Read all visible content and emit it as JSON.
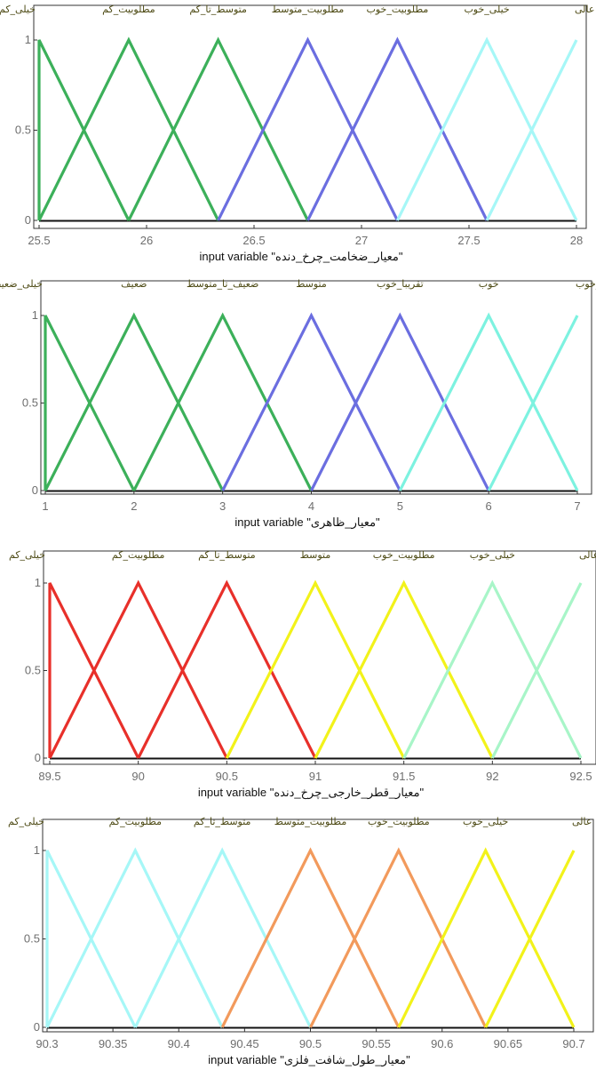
{
  "chart_data": [
    {
      "type": "line",
      "xlabel": "input variable \"معیار_ضخامت_چرخ_دنده\"",
      "xlim": [
        25.5,
        28
      ],
      "ylim": [
        0,
        1
      ],
      "xticks": [
        25.5,
        26,
        26.5,
        27,
        27.5,
        28
      ],
      "xtick_labels": [
        "25.5",
        "26",
        "26.5",
        "27",
        "27.5",
        "28"
      ],
      "yticks": [
        0,
        0.5,
        1
      ],
      "ytick_labels": [
        "0",
        "0.5",
        "1"
      ],
      "grid": false,
      "series": [
        {
          "name": "خیلی_کم",
          "color": "#3cb05a",
          "x": [
            25.5,
            25.5,
            25.917
          ],
          "y": [
            0,
            1,
            0
          ]
        },
        {
          "name": "مطلوبیت_کم",
          "color": "#3cb05a",
          "x": [
            25.5,
            25.917,
            26.333
          ],
          "y": [
            0,
            1,
            0
          ]
        },
        {
          "name": "متوسط_تا_کم",
          "color": "#3cb05a",
          "x": [
            25.917,
            26.333,
            26.75
          ],
          "y": [
            0,
            1,
            0
          ]
        },
        {
          "name": "مطلوبیت_متوسط",
          "color": "#6b6ee0",
          "x": [
            26.333,
            26.75,
            27.167
          ],
          "y": [
            0,
            1,
            0
          ]
        },
        {
          "name": "مطلوبیت_خوب",
          "color": "#6b6ee0",
          "x": [
            26.75,
            27.167,
            27.583
          ],
          "y": [
            0,
            1,
            0
          ]
        },
        {
          "name": "خیلی_خوب",
          "color": "#a6f7f7",
          "x": [
            27.167,
            27.583,
            28
          ],
          "y": [
            0,
            1,
            0
          ]
        },
        {
          "name": "عالی",
          "color": "#a6f7f7",
          "x": [
            27.583,
            28,
            28
          ],
          "y": [
            0,
            1,
            1
          ]
        }
      ]
    },
    {
      "type": "line",
      "xlabel": "input variable \"معیار_ظاهری\"",
      "xlim": [
        1,
        7
      ],
      "ylim": [
        0,
        1
      ],
      "xticks": [
        1,
        2,
        3,
        4,
        5,
        6,
        7
      ],
      "xtick_labels": [
        "1",
        "2",
        "3",
        "4",
        "5",
        "6",
        "7"
      ],
      "yticks": [
        0,
        0.5,
        1
      ],
      "ytick_labels": [
        "0",
        "0.5",
        "1"
      ],
      "grid": false,
      "series": [
        {
          "name": "خیلی_ضعیف",
          "color": "#3cb05a",
          "x": [
            1,
            1,
            2
          ],
          "y": [
            0,
            1,
            0
          ]
        },
        {
          "name": "ضعیف",
          "color": "#3cb05a",
          "x": [
            1,
            2,
            3
          ],
          "y": [
            0,
            1,
            0
          ]
        },
        {
          "name": "ضعیف_تا_متوسط",
          "color": "#3cb05a",
          "x": [
            2,
            3,
            4
          ],
          "y": [
            0,
            1,
            0
          ]
        },
        {
          "name": "متوسط",
          "color": "#6b6ee0",
          "x": [
            3,
            4,
            5
          ],
          "y": [
            0,
            1,
            0
          ]
        },
        {
          "name": "تقریبا_خوب",
          "color": "#6b6ee0",
          "x": [
            4,
            5,
            6
          ],
          "y": [
            0,
            1,
            0
          ]
        },
        {
          "name": "خوب",
          "color": "#7df2e0",
          "x": [
            5,
            6,
            7
          ],
          "y": [
            0,
            1,
            0
          ]
        },
        {
          "name": "خیلی_خوب",
          "color": "#7df2e0",
          "x": [
            6,
            7,
            7
          ],
          "y": [
            0,
            1,
            1
          ]
        }
      ]
    },
    {
      "type": "line",
      "xlabel": "input variable \"معیار_قطر_خارجی_چرخ_دنده\"",
      "xlim": [
        89.5,
        92.5
      ],
      "ylim": [
        0,
        1
      ],
      "xticks": [
        89.5,
        90,
        90.5,
        91,
        91.5,
        92,
        92.5
      ],
      "xtick_labels": [
        "89.5",
        "90",
        "90.5",
        "91",
        "91.5",
        "92",
        "92.5"
      ],
      "yticks": [
        0,
        0.5,
        1
      ],
      "ytick_labels": [
        "0",
        "0.5",
        "1"
      ],
      "grid": false,
      "series": [
        {
          "name": "خیلی_کم",
          "color": "#e8302a",
          "x": [
            89.5,
            89.5,
            90
          ],
          "y": [
            0,
            1,
            0
          ]
        },
        {
          "name": "مطلوبیت_کم",
          "color": "#e8302a",
          "x": [
            89.5,
            90,
            90.5
          ],
          "y": [
            0,
            1,
            0
          ]
        },
        {
          "name": "متوسط_تا_کم",
          "color": "#e8302a",
          "x": [
            90,
            90.5,
            91
          ],
          "y": [
            0,
            1,
            0
          ]
        },
        {
          "name": "متوسط",
          "color": "#f2f21a",
          "x": [
            90.5,
            91,
            91.5
          ],
          "y": [
            0,
            1,
            0
          ]
        },
        {
          "name": "مطلوبیت_خوب",
          "color": "#f2f21a",
          "x": [
            91,
            91.5,
            92
          ],
          "y": [
            0,
            1,
            0
          ]
        },
        {
          "name": "خیلی_خوب",
          "color": "#a8f5c8",
          "x": [
            91.5,
            92,
            92.5
          ],
          "y": [
            0,
            1,
            0
          ]
        },
        {
          "name": "عالی",
          "color": "#a8f5c8",
          "x": [
            92,
            92.5,
            92.5
          ],
          "y": [
            0,
            1,
            1
          ]
        }
      ]
    },
    {
      "type": "line",
      "xlabel": "input variable \"معیار_طول_شافت_فلزی\"",
      "xlim": [
        90.3,
        90.7
      ],
      "ylim": [
        0,
        1
      ],
      "xticks": [
        90.3,
        90.35,
        90.4,
        90.45,
        90.5,
        90.55,
        90.6,
        90.65,
        90.7
      ],
      "xtick_labels": [
        "90.3",
        "90.35",
        "90.4",
        "90.45",
        "90.5",
        "90.55",
        "90.6",
        "90.65",
        "90.7"
      ],
      "yticks": [
        0,
        0.5,
        1
      ],
      "ytick_labels": [
        "0",
        "0.5",
        "1"
      ],
      "grid": false,
      "series": [
        {
          "name": "خیلی_کم",
          "color": "#a6f7f7",
          "x": [
            90.3,
            90.3,
            90.367
          ],
          "y": [
            0,
            1,
            0
          ]
        },
        {
          "name": "مطلوبیت_کم",
          "color": "#a6f7f7",
          "x": [
            90.3,
            90.367,
            90.433
          ],
          "y": [
            0,
            1,
            0
          ]
        },
        {
          "name": "متوسط_تا_کم",
          "color": "#a6f7f7",
          "x": [
            90.367,
            90.433,
            90.5
          ],
          "y": [
            0,
            1,
            0
          ]
        },
        {
          "name": "مطلوبیت_متوسط",
          "color": "#f29a5c",
          "x": [
            90.433,
            90.5,
            90.567
          ],
          "y": [
            0,
            1,
            0
          ]
        },
        {
          "name": "مطلوبیت_خوب",
          "color": "#f29a5c",
          "x": [
            90.5,
            90.567,
            90.633
          ],
          "y": [
            0,
            1,
            0
          ]
        },
        {
          "name": "خیلی_خوب",
          "color": "#f2f21a",
          "x": [
            90.567,
            90.633,
            90.7
          ],
          "y": [
            0,
            1,
            0
          ]
        },
        {
          "name": "عالی",
          "color": "#f2f21a",
          "x": [
            90.633,
            90.7,
            90.7
          ],
          "y": [
            0,
            1,
            1
          ]
        }
      ]
    }
  ]
}
